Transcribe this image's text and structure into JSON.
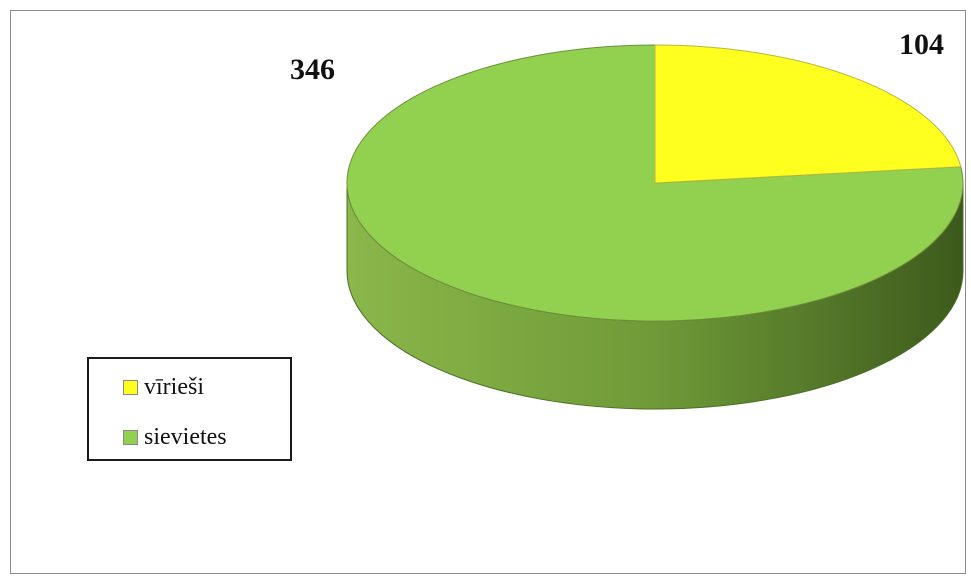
{
  "chart_data": {
    "type": "pie",
    "style": "3d",
    "categories": [
      "vīrieši",
      "sievietes"
    ],
    "values": [
      104,
      346
    ],
    "colors": [
      "#ffff1f",
      "#92d050"
    ],
    "legend_position": "left",
    "data_labels": [
      "104",
      "346"
    ]
  },
  "legend": {
    "items": [
      {
        "label": "vīrieši",
        "color": "#ffff1f"
      },
      {
        "label": "sievietes",
        "color": "#92d050"
      }
    ]
  }
}
